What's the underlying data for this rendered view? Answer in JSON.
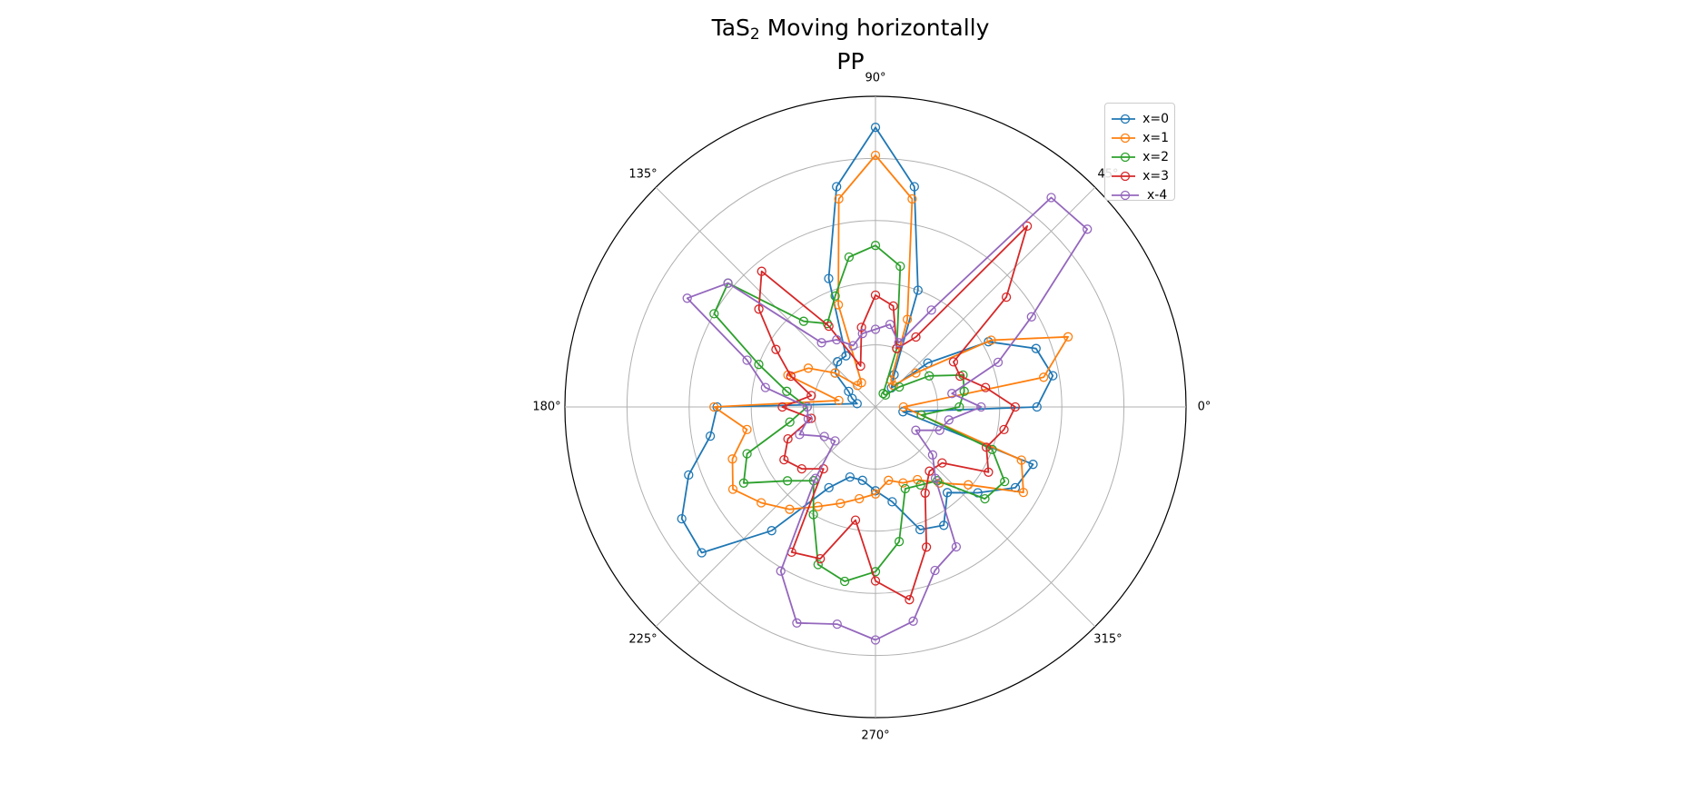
{
  "chart_data": {
    "type": "line",
    "projection": "polar",
    "title_line1_prefix": "TaS",
    "title_subscript": "2",
    "title_line1_suffix": " Moving horizontally",
    "title_line2": "PP",
    "angle_ticks": [
      "0°",
      "45°",
      "90°",
      "135°",
      "180°",
      "225°",
      "270°",
      "315°"
    ],
    "radial_grid": [
      0.2,
      0.4,
      0.6,
      0.8,
      1.0
    ],
    "rlim": [
      0,
      1.0
    ],
    "grid": true,
    "legend_position": "top-right",
    "marker": "open-circle",
    "angles_deg": [
      0,
      10,
      20,
      30,
      40,
      50,
      60,
      70,
      80,
      90,
      100,
      110,
      120,
      130,
      140,
      150,
      160,
      170,
      180,
      190,
      200,
      210,
      220,
      230,
      240,
      250,
      260,
      270,
      280,
      290,
      300,
      310,
      320,
      330,
      340,
      350
    ],
    "series": [
      {
        "name": "x=0",
        "color": "#1f77b4",
        "r": [
          0.52,
          0.58,
          0.55,
          0.42,
          0.22,
          0.08,
          0.12,
          0.4,
          0.72,
          0.9,
          0.72,
          0.44,
          0.19,
          0.19,
          0.17,
          0.1,
          0.08,
          0.06,
          0.51,
          0.54,
          0.64,
          0.72,
          0.73,
          0.52,
          0.3,
          0.24,
          0.24,
          0.27,
          0.31,
          0.42,
          0.44,
          0.36,
          0.43,
          0.52,
          0.54,
          0.09
        ]
      },
      {
        "name": "x=1",
        "color": "#ff7f0e",
        "r": [
          0.09,
          0.55,
          0.66,
          0.43,
          0.17,
          0.09,
          0.1,
          0.3,
          0.68,
          0.81,
          0.68,
          0.35,
          0.09,
          0.09,
          0.17,
          0.25,
          0.3,
          0.12,
          0.52,
          0.42,
          0.49,
          0.53,
          0.48,
          0.43,
          0.37,
          0.33,
          0.3,
          0.28,
          0.24,
          0.26,
          0.27,
          0.32,
          0.39,
          0.55,
          0.5,
          0.15
        ]
      },
      {
        "name": "x=2",
        "color": "#2ca02c",
        "r": [
          0.27,
          0.29,
          0.3,
          0.2,
          0.1,
          0.05,
          0.05,
          0.2,
          0.46,
          0.52,
          0.49,
          0.38,
          0.31,
          0.36,
          0.62,
          0.6,
          0.4,
          0.29,
          0.22,
          0.28,
          0.44,
          0.49,
          0.37,
          0.31,
          0.4,
          0.54,
          0.57,
          0.53,
          0.44,
          0.28,
          0.29,
          0.31,
          0.46,
          0.48,
          0.4,
          0.15
        ]
      },
      {
        "name": "x=3",
        "color": "#d62728",
        "r": [
          0.45,
          0.36,
          0.29,
          0.29,
          0.55,
          0.76,
          0.26,
          0.2,
          0.33,
          0.36,
          0.26,
          0.14,
          0.3,
          0.57,
          0.49,
          0.37,
          0.29,
          0.21,
          0.3,
          0.21,
          0.3,
          0.34,
          0.31,
          0.26,
          0.54,
          0.52,
          0.37,
          0.56,
          0.63,
          0.48,
          0.32,
          0.27,
          0.28,
          0.42,
          0.38,
          0.42
        ]
      },
      {
        "name": "x-4",
        "color": "#9467bd",
        "r": [
          0.34,
          0.25,
          0.42,
          0.58,
          0.89,
          0.88,
          0.36,
          0.22,
          0.27,
          0.25,
          0.24,
          0.21,
          0.25,
          0.27,
          0.62,
          0.7,
          0.44,
          0.36,
          0.22,
          0.22,
          0.26,
          0.19,
          0.17,
          0.3,
          0.61,
          0.74,
          0.71,
          0.75,
          0.7,
          0.56,
          0.52,
          0.3,
          0.24,
          0.15,
          0.22,
          0.24
        ]
      }
    ]
  }
}
